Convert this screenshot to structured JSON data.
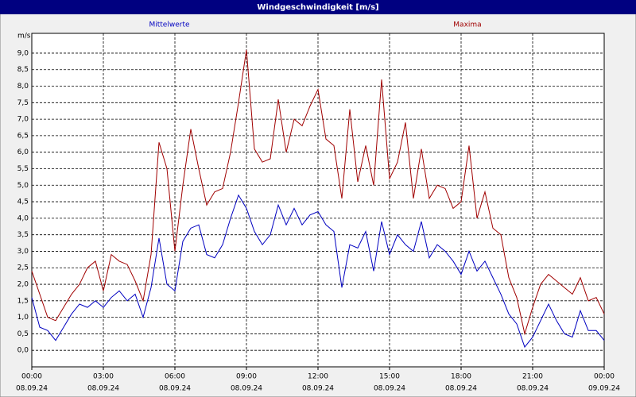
{
  "chart_data": {
    "type": "line",
    "title": "Windgeschwindigkeit [m/s]",
    "y_unit": "m/s",
    "x": [
      0,
      20,
      40,
      60,
      80,
      100,
      120,
      140,
      160,
      180,
      200,
      220,
      240,
      260,
      280,
      300,
      320,
      340,
      360,
      380,
      400,
      420,
      440,
      460,
      480,
      500,
      520,
      540,
      560,
      580,
      600,
      620,
      640,
      660,
      680,
      700,
      720,
      740,
      760,
      780,
      800,
      820,
      840,
      860,
      880,
      900,
      920,
      940,
      960,
      980,
      1000,
      1020,
      1040,
      1060,
      1080,
      1100,
      1120,
      1140,
      1160,
      1180,
      1200,
      1220,
      1240,
      1260,
      1280,
      1300,
      1320,
      1340,
      1360,
      1380,
      1400,
      1420,
      1440
    ],
    "series": [
      {
        "name": "Mittelwerte",
        "color": "#0000c0",
        "values": [
          1.6,
          0.7,
          0.6,
          0.3,
          0.7,
          1.1,
          1.4,
          1.3,
          1.5,
          1.3,
          1.6,
          1.8,
          1.5,
          1.7,
          1.0,
          1.9,
          3.4,
          2.0,
          1.8,
          3.3,
          3.7,
          3.8,
          2.9,
          2.8,
          3.2,
          4.0,
          4.7,
          4.3,
          3.6,
          3.2,
          3.5,
          4.4,
          3.8,
          4.3,
          3.8,
          4.1,
          4.2,
          3.8,
          3.6,
          1.9,
          3.2,
          3.1,
          3.6,
          2.4,
          3.9,
          2.9,
          3.5,
          3.2,
          3.0,
          3.9,
          2.8,
          3.2,
          3.0,
          2.7,
          2.3,
          3.0,
          2.4,
          2.7,
          2.2,
          1.7,
          1.1,
          0.8,
          0.1,
          0.4,
          0.9,
          1.4,
          0.9,
          0.5,
          0.4,
          1.2,
          0.6,
          0.6,
          0.3
        ]
      },
      {
        "name": "Maxima",
        "color": "#a00000",
        "values": [
          2.4,
          1.7,
          1.0,
          0.9,
          1.3,
          1.7,
          2.0,
          2.5,
          2.7,
          1.8,
          2.9,
          2.7,
          2.6,
          2.1,
          1.5,
          2.9,
          6.3,
          5.5,
          3.0,
          5.0,
          6.7,
          5.5,
          4.4,
          4.8,
          4.9,
          6.0,
          7.5,
          9.1,
          6.1,
          5.7,
          5.8,
          7.6,
          6.0,
          7.0,
          6.8,
          7.4,
          7.9,
          6.4,
          6.2,
          4.6,
          7.3,
          5.1,
          6.2,
          5.0,
          8.2,
          5.2,
          5.7,
          6.9,
          4.6,
          6.1,
          4.6,
          5.0,
          4.9,
          4.3,
          4.5,
          6.2,
          4.0,
          4.8,
          3.7,
          3.5,
          2.2,
          1.6,
          0.5,
          1.3,
          2.0,
          2.3,
          2.1,
          1.9,
          1.7,
          2.2,
          1.5,
          1.6,
          1.1
        ]
      }
    ],
    "xlim": [
      0,
      1440
    ],
    "xticks": [
      {
        "value": 0,
        "label": "00:00"
      },
      {
        "value": 180,
        "label": "03:00"
      },
      {
        "value": 360,
        "label": "06:00"
      },
      {
        "value": 540,
        "label": "09:00"
      },
      {
        "value": 720,
        "label": "12:00"
      },
      {
        "value": 900,
        "label": "15:00"
      },
      {
        "value": 1080,
        "label": "18:00"
      },
      {
        "value": 1260,
        "label": "21:00"
      },
      {
        "value": 1440,
        "label": "00:00"
      }
    ],
    "xtick_dates": [
      "08.09.24",
      "08.09.24",
      "08.09.24",
      "08.09.24",
      "08.09.24",
      "08.09.24",
      "08.09.24",
      "08.09.24",
      "09.09.24"
    ],
    "ylim": [
      -0.5,
      9.6
    ],
    "yticks": [
      {
        "value": 0,
        "label": "0,0"
      },
      {
        "value": 0.5,
        "label": "0,5"
      },
      {
        "value": 1,
        "label": "1,0"
      },
      {
        "value": 1.5,
        "label": "1,5"
      },
      {
        "value": 2,
        "label": "2,0"
      },
      {
        "value": 2.5,
        "label": "2,5"
      },
      {
        "value": 3,
        "label": "3,0"
      },
      {
        "value": 3.5,
        "label": "3,5"
      },
      {
        "value": 4,
        "label": "4,0"
      },
      {
        "value": 4.5,
        "label": "4,5"
      },
      {
        "value": 5,
        "label": "5,0"
      },
      {
        "value": 5.5,
        "label": "5,5"
      },
      {
        "value": 6,
        "label": "6,0"
      },
      {
        "value": 6.5,
        "label": "6,5"
      },
      {
        "value": 7,
        "label": "7,0"
      },
      {
        "value": 7.5,
        "label": "7,5"
      },
      {
        "value": 8,
        "label": "8,0"
      },
      {
        "value": 8.5,
        "label": "8,5"
      },
      {
        "value": 9,
        "label": "9,0"
      }
    ],
    "grid": true
  }
}
